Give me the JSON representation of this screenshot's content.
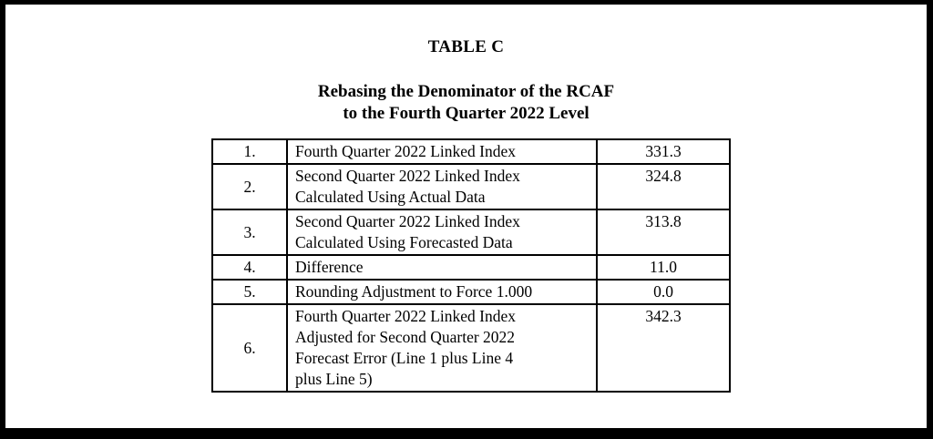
{
  "document": {
    "title": "TABLE C",
    "subtitle": "Rebasing the Denominator of the RCAF\nto the Fourth Quarter 2022 Level"
  },
  "table": {
    "rows": [
      {
        "num": "1.",
        "desc": "Fourth Quarter 2022 Linked Index",
        "value": "331.3"
      },
      {
        "num": "2.",
        "desc": "Second Quarter 2022 Linked Index\nCalculated Using Actual Data",
        "value": "324.8"
      },
      {
        "num": "3.",
        "desc": "Second Quarter 2022 Linked Index\nCalculated Using Forecasted Data",
        "value": "313.8"
      },
      {
        "num": "4.",
        "desc": "Difference",
        "value": "11.0"
      },
      {
        "num": "5.",
        "desc": "Rounding Adjustment to Force 1.000",
        "value": "0.0"
      },
      {
        "num": "6.",
        "desc": "Fourth Quarter 2022 Linked Index\nAdjusted for Second Quarter 2022\nForecast Error (Line 1 plus Line 4\nplus Line 5)",
        "value": "342.3"
      }
    ]
  },
  "colors": {
    "frame": "#000000",
    "page_background": "#ffffff",
    "text": "#000000",
    "table_border": "#000000"
  }
}
